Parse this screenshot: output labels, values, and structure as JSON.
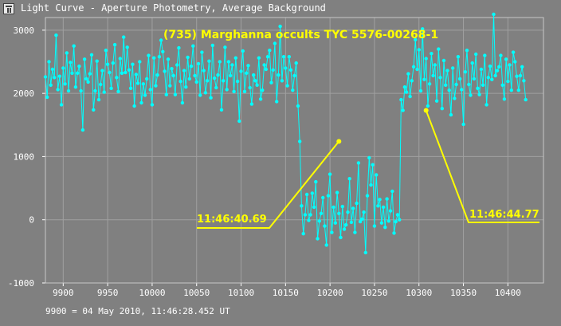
{
  "window": {
    "title": "Light Curve - Aperture Photometry, Average Background",
    "icon": "chart-icon"
  },
  "footer": {
    "text": "9900 = 04 May 2010, 11:46:28.452 UT"
  },
  "colors": {
    "background": "#808080",
    "data": "#00ffff",
    "annotation": "#ffff00",
    "grid": "#a0a0a0",
    "text": "#ffffff"
  },
  "chart_data": {
    "type": "line",
    "title": "(735) Marghanna occults TYC 5576-00268-1",
    "xlabel": "",
    "ylabel": "",
    "xlim": [
      9880,
      10440
    ],
    "ylim": [
      -1000,
      3200
    ],
    "x_ticks": [
      9900,
      9950,
      10000,
      10050,
      10100,
      10150,
      10200,
      10250,
      10300,
      10350,
      10400
    ],
    "y_ticks": [
      -1000,
      0,
      1000,
      2000,
      3000
    ],
    "grid": true,
    "series": [
      {
        "name": "",
        "marker": "dot",
        "x_start": 9880,
        "x_step": 2,
        "values": [
          2260,
          1940,
          2500,
          2130,
          2380,
          2250,
          2920,
          2060,
          2270,
          1820,
          2400,
          2150,
          2640,
          2040,
          2490,
          2320,
          2750,
          2100,
          2320,
          2430,
          2040,
          1420,
          2540,
          2230,
          2180,
          2310,
          2610,
          1740,
          2040,
          2510,
          1900,
          2140,
          2360,
          2020,
          2680,
          2460,
          2330,
          2080,
          2480,
          2770,
          2250,
          2030,
          2550,
          2320,
          2890,
          2330,
          2730,
          2370,
          2080,
          2460,
          1800,
          2300,
          2160,
          2500,
          1850,
          2150,
          1970,
          2230,
          2600,
          2060,
          1820,
          2560,
          2120,
          2290,
          2580,
          2840,
          2660,
          2350,
          1980,
          2540,
          2120,
          2390,
          2280,
          1980,
          2450,
          2720,
          2190,
          1850,
          2360,
          2100,
          2570,
          2230,
          2430,
          2750,
          2280,
          2180,
          2470,
          1970,
          2650,
          2360,
          2010,
          2200,
          2510,
          1930,
          2760,
          2240,
          2090,
          2290,
          2500,
          1740,
          2200,
          2730,
          2060,
          2500,
          2280,
          2450,
          2030,
          2560,
          2190,
          1560,
          2350,
          2670,
          2030,
          2320,
          2440,
          2090,
          1830,
          2290,
          2200,
          2130,
          2560,
          1910,
          2050,
          2450,
          2380,
          2580,
          2680,
          2170,
          2370,
          2790,
          1870,
          2290,
          3060,
          2200,
          2580,
          2400,
          2120,
          2580,
          2370,
          2050,
          2280,
          2480,
          1800,
          1240,
          220,
          -220,
          80,
          400,
          -10,
          80,
          420,
          200,
          600,
          -300,
          -20,
          100,
          350,
          -100,
          -400,
          380,
          720,
          -200,
          200,
          -50,
          430,
          100,
          -280,
          210,
          -150,
          -80,
          120,
          650,
          -40,
          180,
          -200,
          260,
          900,
          -30,
          10,
          120,
          -520,
          380,
          980,
          550,
          870,
          -100,
          710,
          220,
          320,
          -50,
          200,
          -120,
          330,
          -20,
          140,
          450,
          -210,
          -30,
          80,
          0,
          1900,
          1730,
          2100,
          2020,
          2310,
          1950,
          2200,
          2420,
          2850,
          2380,
          2690,
          2040,
          3020,
          2220,
          2550,
          1800,
          2150,
          2630,
          2280,
          2450,
          1880,
          2700,
          2250,
          1760,
          2520,
          2130,
          2360,
          2050,
          1660,
          2400,
          1920,
          2140,
          2580,
          2230,
          2060,
          1510,
          2340,
          2680,
          2140,
          1970,
          2480,
          2230,
          2620,
          2080,
          1980,
          2380,
          2130,
          2600,
          1820,
          2250,
          2430,
          2220,
          3250,
          2280,
          2360,
          2420,
          2600,
          2130,
          1910,
          2540,
          2190,
          2450,
          2050,
          2650,
          2500,
          2270,
          2050,
          2280,
          2420,
          2200,
          1900
        ]
      }
    ],
    "annotations": [
      {
        "text": "11:46:40.69",
        "x": 10210,
        "y": 1240
      },
      {
        "text": "11:46:44.77",
        "x": 10308,
        "y": 1730
      }
    ]
  }
}
